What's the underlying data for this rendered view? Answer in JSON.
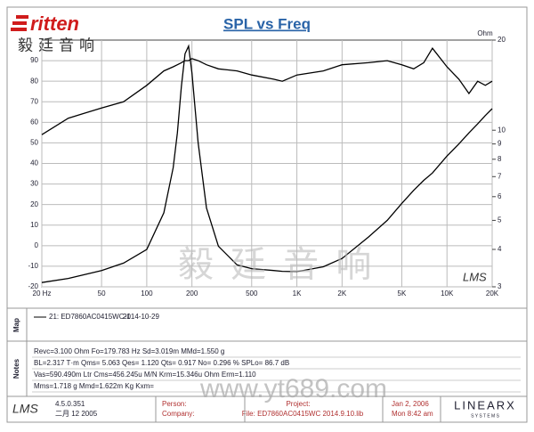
{
  "header": {
    "brand": "ritten",
    "brand_cn": "毅廷音响"
  },
  "chart_data": {
    "type": "line",
    "title": "SPL vs Freq",
    "y2label": "Ohm",
    "x": [
      20,
      30,
      50,
      70,
      100,
      130,
      150,
      160,
      170,
      180,
      190,
      200,
      220,
      250,
      300,
      400,
      500,
      700,
      800,
      1000,
      1500,
      2000,
      3000,
      4000,
      5000,
      6000,
      7000,
      8000,
      10000,
      12000,
      14000,
      16000,
      18000,
      20000
    ],
    "xlim": [
      20,
      20000
    ],
    "xlog": true,
    "xticks": [
      {
        "value": 20,
        "label": "20 Hz"
      },
      50,
      100,
      200,
      500,
      {
        "value": 1000,
        "label": "1K"
      },
      {
        "value": 2000,
        "label": "2K"
      },
      {
        "value": 5000,
        "label": "5K"
      },
      {
        "value": 10000,
        "label": "10K"
      },
      {
        "value": 20000,
        "label": "20K"
      }
    ],
    "ylim": [
      -20,
      100
    ],
    "yticks": [
      -20,
      -10,
      0,
      10,
      20,
      30,
      40,
      50,
      60,
      70,
      80,
      90
    ],
    "y2lim": [
      3,
      20
    ],
    "y2log": true,
    "y2ticks": [
      3,
      4,
      5,
      6,
      7,
      8,
      9,
      10,
      20
    ],
    "grid": true,
    "series": [
      {
        "color": "#000000",
        "values": [
          54,
          62,
          67,
          70,
          78,
          85,
          87,
          88,
          89,
          90,
          90,
          91,
          90,
          88,
          86,
          85,
          83,
          81,
          80,
          83,
          85,
          88,
          89,
          90,
          88,
          86,
          89,
          96,
          87,
          81,
          74,
          80,
          78,
          80
        ]
      },
      {
        "color": "#000000",
        "axis": "y2",
        "values": [
          3.1,
          3.2,
          3.4,
          3.6,
          4.0,
          5.3,
          7.5,
          9.8,
          14,
          18,
          19.1,
          15.5,
          9.1,
          5.5,
          4.1,
          3.55,
          3.45,
          3.4,
          3.38,
          3.37,
          3.5,
          3.73,
          4.4,
          5.0,
          5.7,
          6.3,
          6.8,
          7.2,
          8.2,
          9.0,
          9.8,
          10.5,
          11.2,
          11.8
        ]
      }
    ],
    "mark": "LMS"
  },
  "map": {
    "label": "Map",
    "legend": "21: ED7860AC0415WC-1",
    "date": "2014-10-29"
  },
  "notes": {
    "label": "Notes",
    "lines": [
      "Revc=3.100 Ohm  Fo=179.783 Hz  Sd=3.019m MMd=1.550 g",
      "BL=2.317 T·m  Qms= 5.063  Qes= 1.120  Qts= 0.917  No= 0.296 %  SPLo= 86.7 dB",
      "Vas=590.490m Ltr  Cms=456.245u M/N  Krm=15.346u Ohm  Erm=1.110",
      "Mms=1.718 g  Mmd=1.622m Kg  Kxm="
    ]
  },
  "footer": {
    "logo": "LMS",
    "version": "4.5.0.351",
    "build": "二月 12 2005",
    "person": "Person:",
    "company": "Company:",
    "project": "Project:",
    "file": "File: ED7860AC0415WC   2014.9.10.lib",
    "date": "Jan  2, 2006",
    "time": "Mon  8:42 am",
    "brand": "LINEARX",
    "brand_sub": "S Y S T E M S"
  },
  "watermark": {
    "url": "www.yt689.com",
    "cn": "毅 廷 音 响"
  }
}
